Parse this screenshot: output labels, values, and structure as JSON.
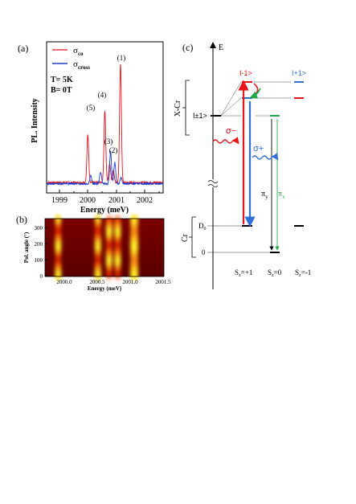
{
  "panel_a": {
    "label": "(a)",
    "ylabel": "PL. Intensity",
    "xlabel": "Energy (meV)",
    "xticks": [
      "1999",
      "2000",
      "2001",
      "2002"
    ],
    "legend": {
      "co_sym": "σ",
      "co_sub": "co",
      "cross_sym": "σ",
      "cross_sub": "cross",
      "co_color": "#e8141b",
      "cross_color": "#1f3bd1"
    },
    "conditions": [
      "T= 5K",
      "B= 0T"
    ],
    "peak_labels": [
      "(1)",
      "(2)",
      "(3)",
      "(4)",
      "(5)"
    ]
  },
  "panel_b": {
    "label": "(b)",
    "ylabel": "Pol. angle (°)",
    "xlabel": "Energy (meV)",
    "xticks": [
      "2000.0",
      "2000.5",
      "2001.0",
      "2001.5"
    ],
    "yticks": [
      "0",
      "100",
      "200",
      "300"
    ]
  },
  "panel_c": {
    "label": "(c)",
    "axis_label": "E",
    "xcr_label": "X-Cr",
    "cr_label": "Cr",
    "state_pm1": "I±1>",
    "state_m1": "I-1>",
    "state_p1": "I+1>",
    "d0_label": "D",
    "d0_sub": "0",
    "zero_label": "0",
    "sigma_minus": "σ−",
    "sigma_plus": "σ+",
    "pi_y": "π",
    "pi_y_sub": "y",
    "pi_x": "π",
    "pi_x_sub": "x",
    "sz_labels": [
      {
        "main": "S",
        "sub": "z",
        "val": "=+1"
      },
      {
        "main": "S",
        "sub": "z",
        "val": "=0"
      },
      {
        "main": "S",
        "sub": "z",
        "val": "=-1"
      }
    ],
    "colors": {
      "red": "#e8141b",
      "blue": "#2f6fd6",
      "green": "#21a84a"
    }
  },
  "chart_data": [
    {
      "type": "line",
      "title": "",
      "xlabel": "Energy (meV)",
      "ylabel": "PL. Intensity",
      "xlim": [
        1998.5,
        2002.6
      ],
      "series": [
        {
          "name": "σco",
          "peaks": [
            {
              "x": 1999.95,
              "y": 0.4
            },
            {
              "x": 2000.55,
              "y": 0.6
            },
            {
              "x": 2000.72,
              "y": 0.16
            },
            {
              "x": 2000.85,
              "y": 0.1
            },
            {
              "x": 2001.1,
              "y": 1.0
            }
          ]
        },
        {
          "name": "σcross",
          "peaks": [
            {
              "x": 2000.05,
              "y": 0.07
            },
            {
              "x": 2000.4,
              "y": 0.1
            },
            {
              "x": 2000.75,
              "y": 0.27
            },
            {
              "x": 2000.9,
              "y": 0.18
            },
            {
              "x": 2001.12,
              "y": 0.05
            }
          ]
        }
      ],
      "annotations": [
        "(1)",
        "(2)",
        "(3)",
        "(4)",
        "(5)",
        "T= 5K",
        "B= 0T"
      ]
    },
    {
      "type": "heatmap",
      "title": "",
      "xlabel": "Energy (meV)",
      "ylabel": "Pol. angle (°)",
      "xlim": [
        1999.75,
        2001.55
      ],
      "ylim": [
        0,
        360
      ],
      "bands": [
        {
          "x": 1999.95,
          "modulation": "in-phase"
        },
        {
          "x": 2000.55,
          "modulation": "in-phase"
        },
        {
          "x": 2000.72,
          "modulation": "anti-phase"
        },
        {
          "x": 2000.85,
          "modulation": "anti-phase"
        },
        {
          "x": 2001.1,
          "modulation": "weak"
        }
      ]
    }
  ]
}
